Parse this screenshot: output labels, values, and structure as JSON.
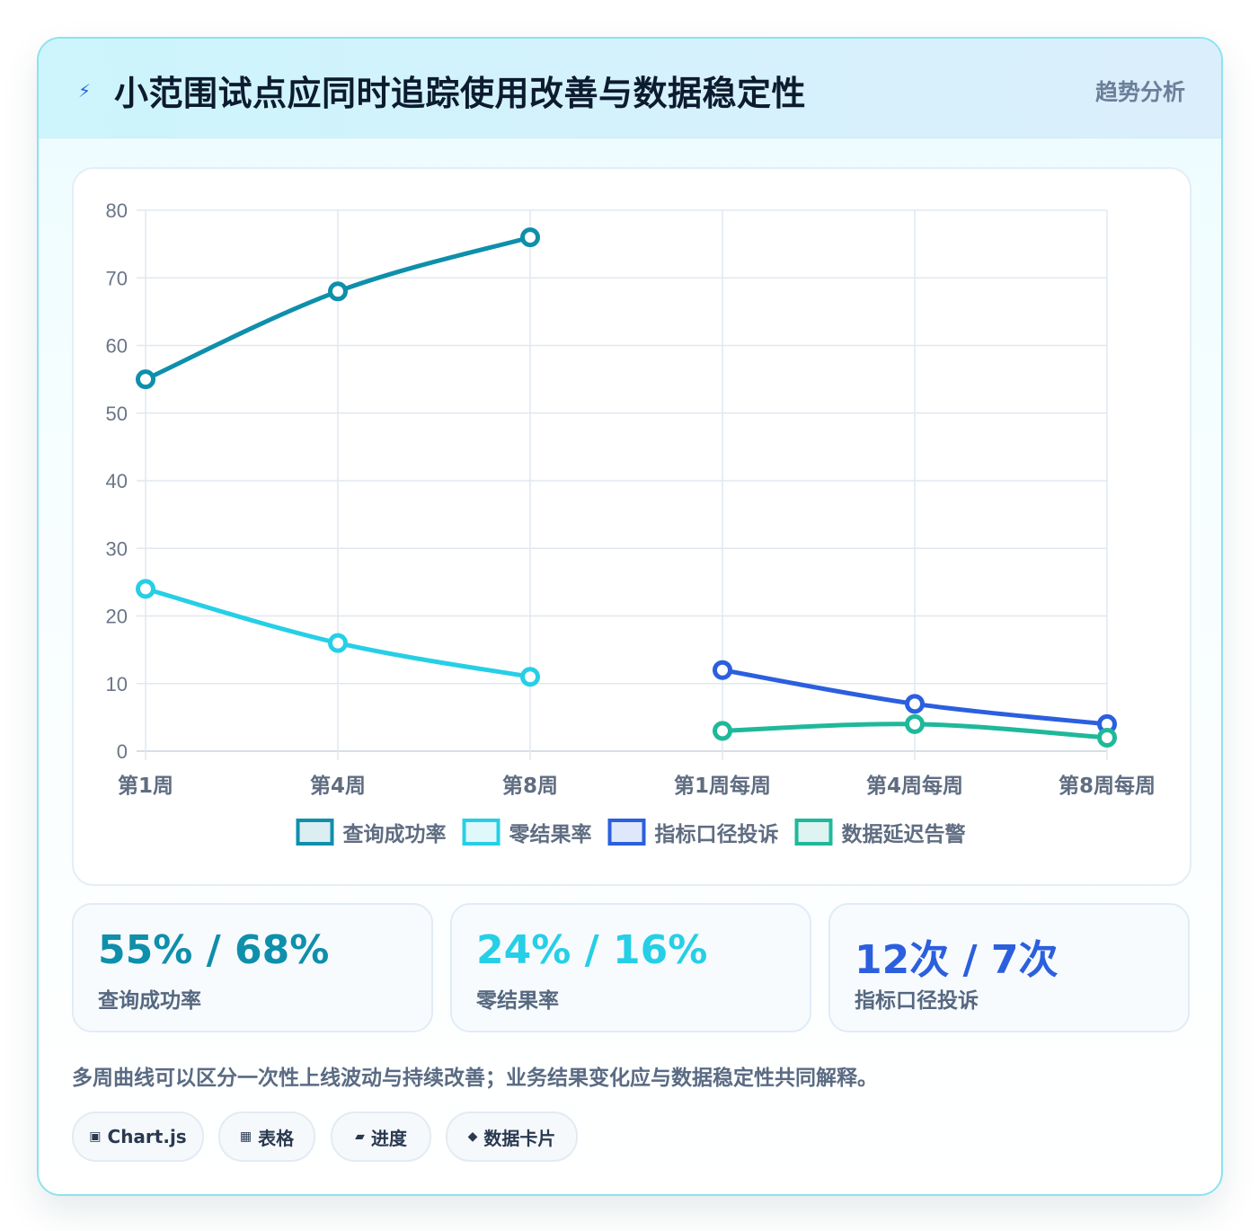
{
  "header": {
    "icon": "lightning-icon",
    "title": "小范围试点应同时追踪使用改善与数据稳定性",
    "tag": "趋势分析"
  },
  "chart_data": {
    "type": "line",
    "categories": [
      "第1周",
      "第4周",
      "第8周",
      "第1周每周",
      "第4周每周",
      "第8周每周"
    ],
    "ylim": [
      0,
      80
    ],
    "yticks": [
      "0",
      "10",
      "20",
      "30",
      "40",
      "50",
      "60",
      "70",
      "80"
    ],
    "grid": true,
    "legend_position": "bottom",
    "series": [
      {
        "name": "查询成功率",
        "color": "#0e8fab",
        "values": [
          55,
          68,
          76,
          null,
          null,
          null
        ]
      },
      {
        "name": "零结果率",
        "color": "#26cfe6",
        "values": [
          24,
          16,
          11,
          null,
          null,
          null
        ]
      },
      {
        "name": "指标口径投诉",
        "color": "#2b5fde",
        "values": [
          null,
          null,
          null,
          12,
          7,
          4
        ]
      },
      {
        "name": "数据延迟告警",
        "color": "#1fb89a",
        "values": [
          null,
          null,
          null,
          3,
          4,
          2
        ]
      }
    ]
  },
  "stats": [
    {
      "value": "55% / 68%",
      "label": "查询成功率",
      "color": "#0e8fab"
    },
    {
      "value": "24% / 16%",
      "label": "零结果率",
      "color": "#26cfe6"
    },
    {
      "value": "12次 / 7次",
      "label": "指标口径投诉",
      "color": "#2b5fde"
    }
  ],
  "note": "多周曲线可以区分一次性上线波动与持续改善；业务结果变化应与数据稳定性共同解释。",
  "pills": [
    {
      "icon": "▣",
      "icon_name": "chart-icon",
      "label": "Chart.js"
    },
    {
      "icon": "▦",
      "icon_name": "table-icon",
      "label": "表格"
    },
    {
      "icon": "▰",
      "icon_name": "progress-icon",
      "label": "进度"
    },
    {
      "icon": "◆",
      "icon_name": "card-icon",
      "label": "数据卡片"
    }
  ]
}
